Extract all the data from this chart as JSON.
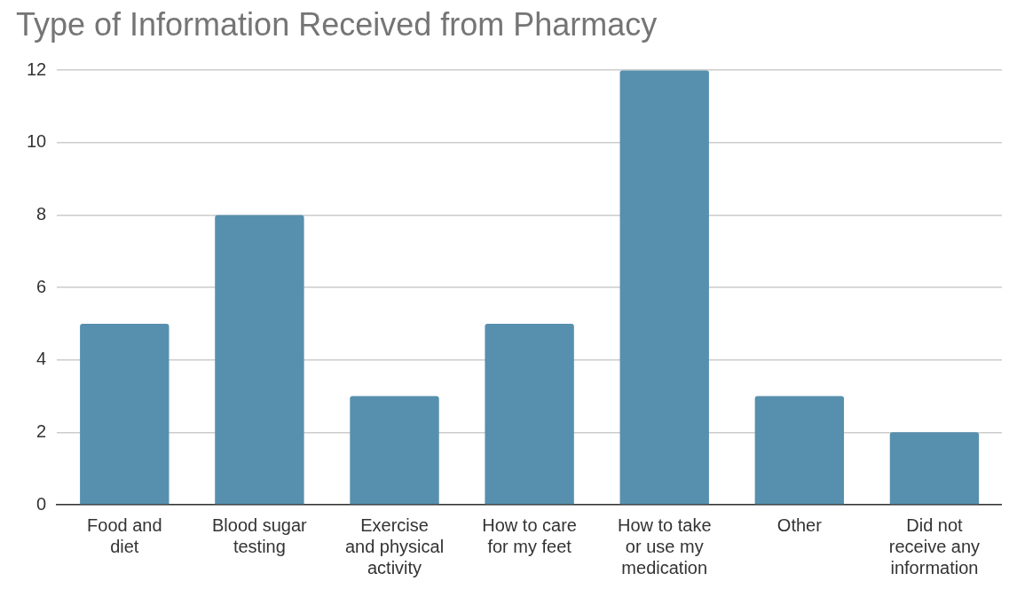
{
  "chart_data": {
    "type": "bar",
    "title": "Type of Information Received from Pharmacy",
    "categories": [
      "Food and diet",
      "Blood sugar testing",
      "Exercise and physical activity",
      "How to care for my feet",
      "How to take or use my medication",
      "Other",
      "Did not receive any information"
    ],
    "values": [
      5,
      8,
      3,
      5,
      12,
      3,
      2
    ],
    "color": "#5790ae",
    "ylim": [
      0,
      12
    ],
    "yticks": [
      0,
      2,
      4,
      6,
      8,
      10,
      12
    ],
    "grid": "y",
    "legend": false
  }
}
